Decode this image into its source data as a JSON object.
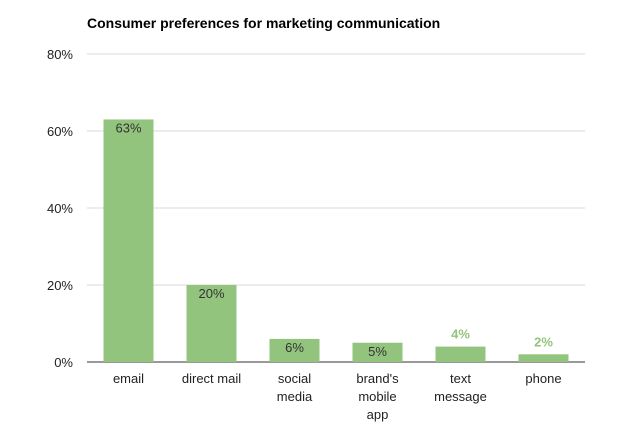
{
  "chart_data": {
    "type": "bar",
    "title": "Consumer preferences for marketing communication",
    "xlabel": "",
    "ylabel": "",
    "categories": [
      [
        "email"
      ],
      [
        "direct mail"
      ],
      [
        "social",
        "media"
      ],
      [
        "brand's",
        "mobile",
        "app"
      ],
      [
        "text",
        "message"
      ],
      [
        "phone"
      ]
    ],
    "values": [
      63,
      20,
      6,
      5,
      4,
      2
    ],
    "data_labels": [
      "63%",
      "20%",
      "6%",
      "5%",
      "4%",
      "2%"
    ],
    "ylim": [
      0,
      80
    ],
    "yticks": [
      0,
      20,
      40,
      60,
      80
    ],
    "ytick_labels": [
      "0%",
      "20%",
      "40%",
      "60%",
      "80%"
    ],
    "grid": true,
    "legend": "none",
    "colors": {
      "bar": "#93c47d",
      "label_inside": "#333333",
      "label_outside": "#93c47d",
      "grid": "#d9d9d9",
      "axis": "#333333"
    }
  }
}
